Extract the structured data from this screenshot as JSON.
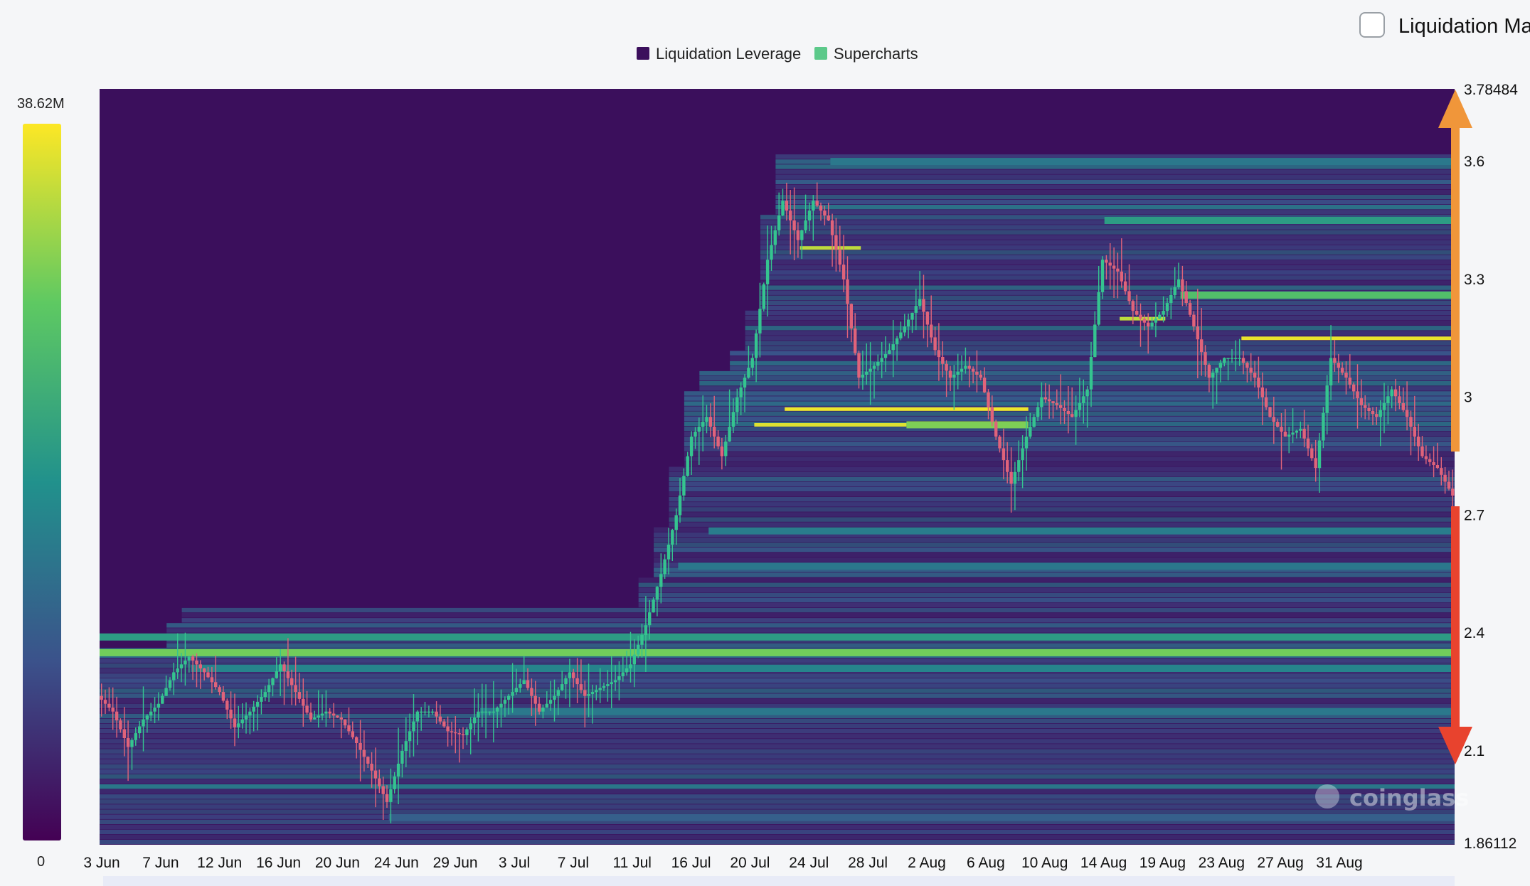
{
  "legend": [
    {
      "label": "Liquidation Leverage",
      "color": "#3b0f5c"
    },
    {
      "label": "Supercharts",
      "color": "#5cc98a"
    }
  ],
  "toggle": {
    "label": "Liquidation Ma"
  },
  "colorbar": {
    "max_label": "38.62M",
    "min_label": "0"
  },
  "watermark": "coinglass",
  "colors": {
    "background": "#3b0f5c",
    "candle_up": "#35c48f",
    "candle_down": "#e0637a",
    "arrow_up": "#f0963a",
    "arrow_down": "#e8432e",
    "colormap": [
      "#440154",
      "#3b528b",
      "#21918c",
      "#5ec962",
      "#fde725"
    ]
  },
  "chart_data": {
    "type": "heatmap",
    "x_tick_labels": [
      "3 Jun",
      "7 Jun",
      "12 Jun",
      "16 Jun",
      "20 Jun",
      "24 Jun",
      "29 Jun",
      "3 Jul",
      "7 Jul",
      "11 Jul",
      "16 Jul",
      "20 Jul",
      "24 Jul",
      "28 Jul",
      "2 Aug",
      "6 Aug",
      "10 Aug",
      "14 Aug",
      "19 Aug",
      "23 Aug",
      "27 Aug",
      "31 Aug"
    ],
    "x_range_days": [
      0,
      89
    ],
    "y_range": [
      1.86112,
      3.78484
    ],
    "y_tick_labels": [
      "3.78484",
      "3.6",
      "3.3",
      "3",
      "2.7",
      "2.4",
      "2.1",
      "1.86112"
    ],
    "y_tick_values": [
      3.78484,
      3.6,
      3.3,
      3.0,
      2.7,
      2.4,
      2.1,
      1.86112
    ],
    "scale_max": 38.62,
    "price_path": [
      [
        0,
        2.24
      ],
      [
        1,
        2.2
      ],
      [
        2,
        2.11
      ],
      [
        3,
        2.18
      ],
      [
        4,
        2.22
      ],
      [
        5,
        2.3
      ],
      [
        6,
        2.34
      ],
      [
        7,
        2.3
      ],
      [
        8,
        2.25
      ],
      [
        9,
        2.16
      ],
      [
        10,
        2.2
      ],
      [
        11,
        2.25
      ],
      [
        12,
        2.32
      ],
      [
        13,
        2.25
      ],
      [
        14,
        2.18
      ],
      [
        15,
        2.2
      ],
      [
        16,
        2.18
      ],
      [
        17,
        2.12
      ],
      [
        18,
        2.05
      ],
      [
        19,
        1.97
      ],
      [
        20,
        2.1
      ],
      [
        21,
        2.2
      ],
      [
        22,
        2.2
      ],
      [
        23,
        2.15
      ],
      [
        24,
        2.14
      ],
      [
        25,
        2.2
      ],
      [
        26,
        2.2
      ],
      [
        27,
        2.24
      ],
      [
        28,
        2.28
      ],
      [
        29,
        2.2
      ],
      [
        30,
        2.24
      ],
      [
        31,
        2.3
      ],
      [
        32,
        2.24
      ],
      [
        33,
        2.26
      ],
      [
        34,
        2.28
      ],
      [
        35,
        2.32
      ],
      [
        36,
        2.42
      ],
      [
        37,
        2.55
      ],
      [
        38,
        2.7
      ],
      [
        39,
        2.9
      ],
      [
        40,
        2.95
      ],
      [
        41,
        2.85
      ],
      [
        42,
        3.0
      ],
      [
        43,
        3.1
      ],
      [
        44,
        3.35
      ],
      [
        45,
        3.5
      ],
      [
        46,
        3.4
      ],
      [
        47,
        3.5
      ],
      [
        48,
        3.45
      ],
      [
        49,
        3.3
      ],
      [
        50,
        3.05
      ],
      [
        51,
        3.08
      ],
      [
        52,
        3.12
      ],
      [
        53,
        3.18
      ],
      [
        54,
        3.25
      ],
      [
        55,
        3.12
      ],
      [
        56,
        3.05
      ],
      [
        57,
        3.08
      ],
      [
        58,
        3.05
      ],
      [
        59,
        2.9
      ],
      [
        60,
        2.78
      ],
      [
        61,
        2.9
      ],
      [
        62,
        3.0
      ],
      [
        63,
        2.98
      ],
      [
        64,
        2.95
      ],
      [
        65,
        3.02
      ],
      [
        66,
        3.35
      ],
      [
        67,
        3.32
      ],
      [
        68,
        3.22
      ],
      [
        69,
        3.18
      ],
      [
        70,
        3.22
      ],
      [
        71,
        3.3
      ],
      [
        72,
        3.18
      ],
      [
        73,
        3.05
      ],
      [
        74,
        3.1
      ],
      [
        75,
        3.1
      ],
      [
        76,
        3.05
      ],
      [
        77,
        2.95
      ],
      [
        78,
        2.9
      ],
      [
        79,
        2.92
      ],
      [
        80,
        2.82
      ],
      [
        81,
        3.1
      ],
      [
        82,
        3.05
      ],
      [
        83,
        2.98
      ],
      [
        84,
        2.95
      ],
      [
        85,
        3.02
      ],
      [
        86,
        2.95
      ],
      [
        87,
        2.85
      ],
      [
        88,
        2.82
      ],
      [
        89,
        2.75
      ]
    ],
    "liquidation_levels": [
      {
        "from_day": 0,
        "to_day": 89,
        "price": 2.35,
        "intensity": 0.78
      },
      {
        "from_day": 0,
        "to_day": 89,
        "price": 2.39,
        "intensity": 0.55
      },
      {
        "from_day": 6,
        "to_day": 89,
        "price": 2.31,
        "intensity": 0.45
      },
      {
        "from_day": 45,
        "to_day": 61,
        "price": 2.97,
        "intensity": 0.98
      },
      {
        "from_day": 43,
        "to_day": 53,
        "price": 2.93,
        "intensity": 0.95
      },
      {
        "from_day": 53,
        "to_day": 61,
        "price": 2.93,
        "intensity": 0.8
      },
      {
        "from_day": 46,
        "to_day": 50,
        "price": 3.38,
        "intensity": 0.9
      },
      {
        "from_day": 75,
        "to_day": 89,
        "price": 3.15,
        "intensity": 0.97
      },
      {
        "from_day": 71,
        "to_day": 89,
        "price": 3.26,
        "intensity": 0.7
      },
      {
        "from_day": 67,
        "to_day": 70,
        "price": 3.2,
        "intensity": 0.9
      },
      {
        "from_day": 66,
        "to_day": 89,
        "price": 3.45,
        "intensity": 0.55
      },
      {
        "from_day": 48,
        "to_day": 89,
        "price": 3.6,
        "intensity": 0.4
      },
      {
        "from_day": 38,
        "to_day": 89,
        "price": 2.57,
        "intensity": 0.4
      },
      {
        "from_day": 40,
        "to_day": 89,
        "price": 2.66,
        "intensity": 0.42
      },
      {
        "from_day": 25,
        "to_day": 89,
        "price": 2.2,
        "intensity": 0.4
      },
      {
        "from_day": 19,
        "to_day": 89,
        "price": 1.93,
        "intensity": 0.3
      }
    ]
  }
}
